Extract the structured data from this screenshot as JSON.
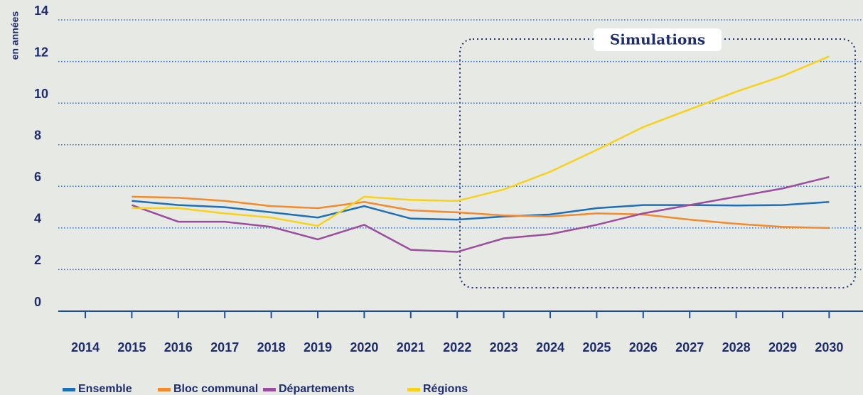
{
  "chart_data": {
    "type": "line",
    "y_axis_label": "en années",
    "annotation": "Simulations",
    "categories": [
      "2014",
      "2015",
      "2016",
      "2017",
      "2018",
      "2019",
      "2020",
      "2021",
      "2022",
      "2023",
      "2024",
      "2025",
      "2026",
      "2027",
      "2028",
      "2029",
      "2030"
    ],
    "series": [
      {
        "name": "Ensemble",
        "color": "#1f6fb4",
        "values": [
          null,
          5.3,
          5.1,
          5.0,
          4.75,
          4.5,
          5.05,
          4.45,
          4.4,
          4.55,
          4.65,
          4.95,
          5.1,
          5.1,
          5.08,
          5.1,
          5.25
        ]
      },
      {
        "name": "Bloc communal",
        "color": "#f28a2e",
        "values": [
          null,
          5.5,
          5.45,
          5.3,
          5.05,
          4.95,
          5.25,
          4.85,
          4.75,
          4.6,
          4.55,
          4.7,
          4.65,
          4.4,
          4.2,
          4.05,
          4.0
        ]
      },
      {
        "name": "Départements",
        "color": "#9b4d9e",
        "values": [
          null,
          5.1,
          4.3,
          4.3,
          4.05,
          3.45,
          4.15,
          2.95,
          2.85,
          3.5,
          3.7,
          4.15,
          4.7,
          5.1,
          5.5,
          5.9,
          6.45
        ]
      },
      {
        "name": "Régions",
        "color": "#f7d21c",
        "values": [
          null,
          4.95,
          4.95,
          4.7,
          4.5,
          4.1,
          5.5,
          5.35,
          5.3,
          5.85,
          6.7,
          7.75,
          8.85,
          9.7,
          10.55,
          11.3,
          12.25
        ]
      }
    ],
    "ylim": [
      0,
      14
    ],
    "yticks": [
      0,
      2,
      4,
      6,
      8,
      10,
      12,
      14
    ],
    "grid": true
  }
}
